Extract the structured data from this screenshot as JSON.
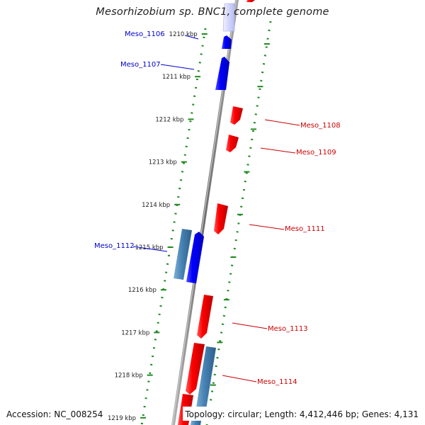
{
  "title": "Mesorhizobium sp. BNC1, complete genome",
  "footer": {
    "accession": "Accession: NC_008254",
    "topology": "Topology: circular; Length: 4,412,446 bp; Genes: 4,131"
  },
  "colors": {
    "forward": "#1a1ae6",
    "reverse": "#e81515",
    "rna": "#4b86b4",
    "backbone": "#8a8a8a",
    "dotted": "#1e8a1e"
  },
  "ticks": [
    {
      "label": "1210 kbp",
      "pos_kbp": 1210
    },
    {
      "label": "1211 kbp",
      "pos_kbp": 1211
    },
    {
      "label": "1212 kbp",
      "pos_kbp": 1212
    },
    {
      "label": "1213 kbp",
      "pos_kbp": 1213
    },
    {
      "label": "1214 kbp",
      "pos_kbp": 1214
    },
    {
      "label": "1215 kbp",
      "pos_kbp": 1215
    },
    {
      "label": "1216 kbp",
      "pos_kbp": 1216
    },
    {
      "label": "1217 kbp",
      "pos_kbp": 1217
    },
    {
      "label": "1218 kbp",
      "pos_kbp": 1218
    },
    {
      "label": "1219 kbp",
      "pos_kbp": 1219
    }
  ],
  "genes": [
    {
      "name": "",
      "strand": "forward"
    },
    {
      "name": "",
      "strand": "reverse"
    },
    {
      "name": "Meso_1106",
      "strand": "forward"
    },
    {
      "name": "Meso_1107",
      "strand": "forward"
    },
    {
      "name": "Meso_1108",
      "strand": "reverse"
    },
    {
      "name": "Meso_1109",
      "strand": "reverse"
    },
    {
      "name": "Meso_1111",
      "strand": "reverse"
    },
    {
      "name": "",
      "strand": "rna"
    },
    {
      "name": "Meso_1112",
      "strand": "forward"
    },
    {
      "name": "Meso_1113",
      "strand": "reverse"
    },
    {
      "name": "Meso_1114",
      "strand": "reverse"
    },
    {
      "name": "",
      "strand": "rna"
    },
    {
      "name": "",
      "strand": "reverse"
    }
  ]
}
